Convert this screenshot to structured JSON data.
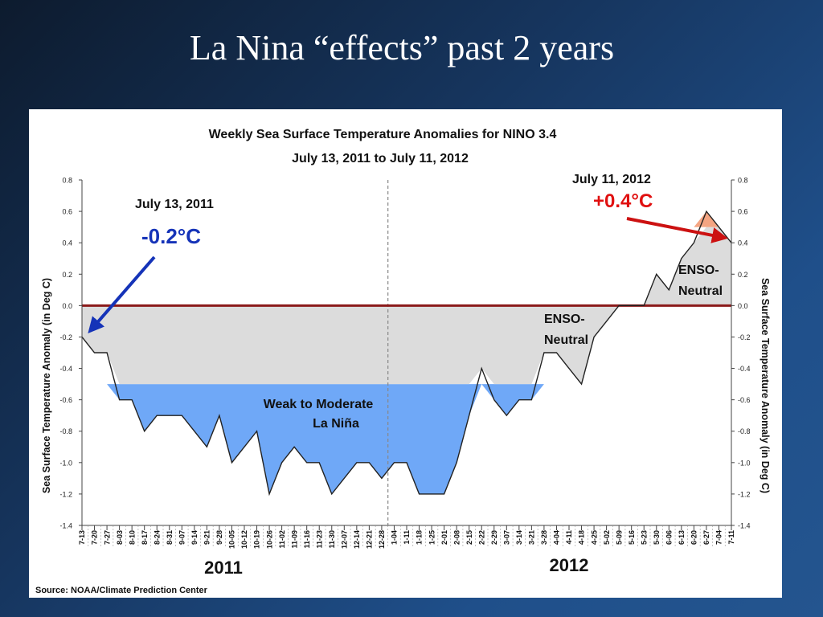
{
  "slide": {
    "title": "La Nina “effects” past 2 years"
  },
  "chart_data": {
    "type": "line",
    "title": "Weekly Sea Surface Temperature Anomalies for NINO 3.4",
    "subtitle": "July 13, 2011 to July 11, 2012",
    "ylabel": "Sea Surface Temperature Anomaly (in Deg C)",
    "ylabel_right": "Sea Surface Temperature Anomaly (in Deg C)",
    "ylim": [
      -1.4,
      0.8
    ],
    "yticks": [
      "0.8",
      "0.6",
      "0.4",
      "0.2",
      "0.0",
      "-0.2",
      "-0.4",
      "-0.6",
      "-0.8",
      "-1.0",
      "-1.2",
      "-1.4"
    ],
    "yticks_right": [
      "0.8",
      "0.6",
      "0.4",
      "0.2",
      "0.0",
      "-0.2",
      "-0.4",
      "-0.6",
      "-0.8",
      "-1.0",
      "-1.2",
      "-1.4"
    ],
    "categories": [
      "7-13",
      "7-20",
      "7-27",
      "8-03",
      "8-10",
      "8-17",
      "8-24",
      "8-31",
      "9-07",
      "9-14",
      "9-21",
      "9-28",
      "10-05",
      "10-12",
      "10-19",
      "10-26",
      "11-02",
      "11-09",
      "11-16",
      "11-23",
      "11-30",
      "12-07",
      "12-14",
      "12-21",
      "12-28",
      "1-04",
      "1-11",
      "1-18",
      "1-25",
      "2-01",
      "2-08",
      "2-15",
      "2-22",
      "2-29",
      "3-07",
      "3-14",
      "3-21",
      "3-28",
      "4-04",
      "4-11",
      "4-18",
      "4-25",
      "5-02",
      "5-09",
      "5-16",
      "5-23",
      "5-30",
      "6-06",
      "6-13",
      "6-20",
      "6-27",
      "7-04",
      "7-11"
    ],
    "series": [
      {
        "values": [
          -0.2,
          -0.3,
          -0.3,
          -0.6,
          -0.6,
          -0.8,
          -0.7,
          -0.7,
          -0.7,
          -0.8,
          -0.9,
          -0.7,
          -1.0,
          -0.9,
          -0.8,
          -1.2,
          -1.0,
          -0.9,
          -1.0,
          -1.0,
          -1.2,
          -1.1,
          -1.0,
          -1.0,
          -1.1,
          -1.0,
          -1.0,
          -1.2,
          -1.2,
          -1.2,
          -1.0,
          -0.7,
          -0.4,
          -0.6,
          -0.7,
          -0.6,
          -0.6,
          -0.3,
          -0.3,
          -0.4,
          -0.5,
          -0.2,
          -0.1,
          0.0,
          0.0,
          0.0,
          0.2,
          0.1,
          0.3,
          0.4,
          0.6,
          0.5,
          0.4
        ]
      }
    ],
    "zero_line": 0.0,
    "la_nina_threshold": -0.5,
    "divider_between": [
      "12-28",
      "1-04"
    ],
    "regions": [
      {
        "label_lines": [
          "Weak to Moderate",
          "La Niña"
        ]
      },
      {
        "label_lines": [
          "ENSO-",
          "Neutral"
        ]
      },
      {
        "label_lines": [
          "ENSO-",
          "Neutral"
        ]
      }
    ],
    "year_labels": [
      "2011",
      "2012"
    ],
    "annotations": {
      "start": {
        "date": "July 13, 2011",
        "value": "-0.2°C"
      },
      "end": {
        "date": "July 11, 2012",
        "value": "+0.4°C"
      }
    },
    "source": "Source: NOAA/Climate Prediction Center",
    "colors": {
      "la_nina_fill": "#6fa8f7",
      "neutral_fill": "#dcdcdc",
      "warm_fill": "#f4a582",
      "zero_line": "#8b1a1a",
      "start_arrow": "#1533b8",
      "end_arrow": "#cc1111",
      "start_value_text": "#1533b8",
      "end_value_text": "#e01010"
    }
  }
}
